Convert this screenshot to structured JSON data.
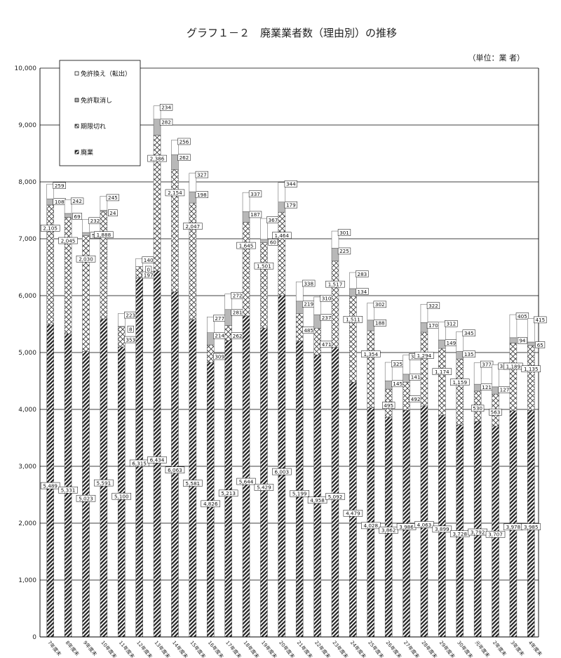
{
  "chart_data": {
    "type": "bar",
    "stacked": true,
    "title": "グラフ１－２　廃業業者数（理由別）の推移",
    "unit_note": "（単位：業 者）",
    "ylim": [
      0,
      10000
    ],
    "yticks": [
      "0",
      "1,000",
      "2,000",
      "3,000",
      "4,000",
      "5,000",
      "6,000",
      "7,000",
      "8,000",
      "9,000",
      "10,000"
    ],
    "grid": true,
    "legend_placement": "top-left",
    "categories": [
      "7年度末",
      "8年度末",
      "9年度末",
      "10年度末",
      "11年度末",
      "12年度末",
      "13年度末",
      "14年度末",
      "15年度末",
      "16年度末",
      "17年度末",
      "18年度末",
      "19年度末",
      "20年度末",
      "21年度末",
      "22年度末",
      "23年度末",
      "24年度末",
      "25年度末",
      "26年度末",
      "27年度末",
      "28年度末",
      "29年度末",
      "30年度末",
      "元年度末",
      "2年度末",
      "3年度末",
      "4年度末"
    ],
    "series": [
      {
        "name": "廃業",
        "pattern": "diagonal-hatch",
        "values": [
          5489,
          5331,
          5023,
          5591,
          5100,
          6315,
          6434,
          6063,
          5581,
          4826,
          5213,
          5644,
          5429,
          6003,
          5199,
          4958,
          5092,
          4479,
          4028,
          3862,
          3986,
          4063,
          3899,
          3728,
          3792,
          3707,
          3978,
          3985
        ],
        "labels": [
          "5,489",
          "5,331",
          "5,023",
          "5,591",
          "5,100",
          "6,315",
          "6,434",
          "6,063",
          "5,581",
          "4,826",
          "5,213",
          "5,644",
          "5,429",
          "6,003",
          "5,199",
          "4,958",
          "5,092",
          "4,479",
          "4,028",
          "3,862",
          "3,986",
          "4,063",
          "3,899",
          "3,728",
          "3,792",
          "3,707",
          "3,978",
          "3,985"
        ]
      },
      {
        "name": "期限切れ",
        "pattern": "crosshatch",
        "values": [
          2105,
          2045,
          2030,
          1888,
          353,
          197,
          2386,
          2154,
          2047,
          309,
          262,
          1645,
          1501,
          1464,
          485,
          471,
          1517,
          1511,
          1354,
          495,
          492,
          1294,
          1174,
          1159,
          530,
          563,
          1189,
          1135
        ],
        "labels": [
          "2,105",
          "2,045",
          "2,030",
          "1,888",
          "353",
          "197",
          "2,386",
          "2,154",
          "2,047",
          "309",
          "262",
          "1,645",
          "1,501",
          "1,464",
          "485",
          "471",
          "1,517",
          "1,511",
          "1,354",
          "495",
          "492",
          "1,294",
          "1,174",
          "1,159",
          "530",
          "563",
          "1,189",
          "1,135"
        ]
      },
      {
        "name": "免許取消し",
        "pattern": "gray",
        "values": [
          108,
          69,
          57,
          24,
          8,
          0,
          282,
          262,
          198,
          214,
          281,
          187,
          60,
          179,
          219,
          237,
          225,
          134,
          188,
          145,
          141,
          170,
          149,
          135,
          121,
          127,
          94,
          65
        ],
        "labels": [
          "108",
          "69",
          "57",
          "24",
          "8",
          "0",
          "282",
          "262",
          "198",
          "214",
          "281",
          "187",
          "60",
          "179",
          "219",
          "237",
          "225",
          "134",
          "188",
          "145",
          "141",
          "170",
          "149",
          "135",
          "121",
          "127",
          "94",
          "65"
        ]
      },
      {
        "name": "免許換え（転出）",
        "pattern": "white",
        "values": [
          259,
          242,
          232,
          245,
          223,
          140,
          234,
          256,
          327,
          277,
          272,
          337,
          367,
          344,
          338,
          310,
          301,
          283,
          302,
          325,
          335,
          322,
          312,
          345,
          377,
          388,
          405,
          415
        ],
        "labels": [
          "259",
          "242",
          "232",
          "245",
          "223",
          "140",
          "234",
          "256",
          "327",
          "277",
          "272",
          "337",
          "367",
          "344",
          "338",
          "310",
          "301",
          "283",
          "302",
          "325",
          "335",
          "322",
          "312",
          "345",
          "377",
          "388",
          "405",
          "415"
        ]
      }
    ]
  }
}
